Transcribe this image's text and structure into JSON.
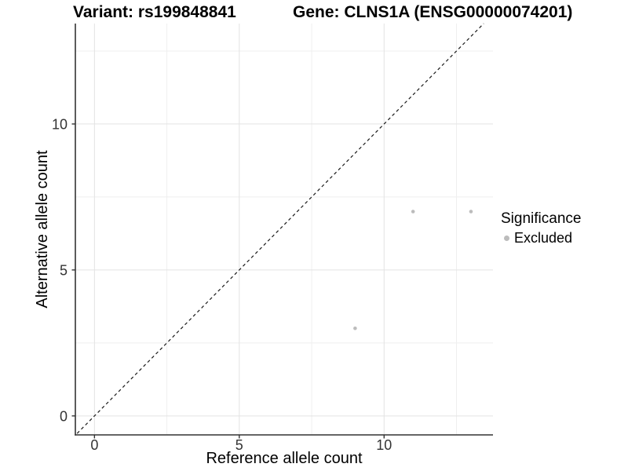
{
  "header": {
    "variant_title": "Variant: rs199848841",
    "gene_title": "Gene: CLNS1A (ENSG00000074201)"
  },
  "axes": {
    "x_label": "Reference allele count",
    "y_label": "Alternative allele count"
  },
  "legend": {
    "title": "Significance",
    "position": "right",
    "items": [
      {
        "label": "Excluded",
        "color": "#bcbcbc"
      }
    ]
  },
  "chart_data": {
    "type": "scatter",
    "title": "Variant: rs199848841 / Gene: CLNS1A (ENSG00000074201)",
    "xlabel": "Reference allele count",
    "ylabel": "Alternative allele count",
    "xlim": [
      -0.66,
      13.76
    ],
    "ylim": [
      -0.65,
      13.44
    ],
    "grid": true,
    "x_ticks": {
      "major": [
        0,
        5,
        10
      ],
      "minor": [
        2.5,
        7.5,
        12.5
      ],
      "labels": [
        "0",
        "5",
        "10"
      ]
    },
    "y_ticks": {
      "major": [
        0,
        5,
        10
      ],
      "minor": [
        2.5,
        7.5,
        12.5
      ],
      "labels": [
        "0",
        "5",
        "10"
      ]
    },
    "series": [
      {
        "name": "Excluded",
        "color": "#bcbcbc",
        "points": [
          [
            9,
            3
          ],
          [
            11,
            7
          ],
          [
            13,
            7
          ]
        ]
      }
    ],
    "identity_line": {
      "style": "dashed",
      "slope": 1,
      "intercept": 0,
      "from": [
        -0.6,
        -0.6
      ],
      "to": [
        13.44,
        13.44
      ]
    },
    "colors": {
      "grid_major": "#e3e3e3",
      "grid_minor": "#efefef",
      "axis": "#333333",
      "tick_text": "#333333",
      "identity": "#1a1a1a"
    }
  }
}
